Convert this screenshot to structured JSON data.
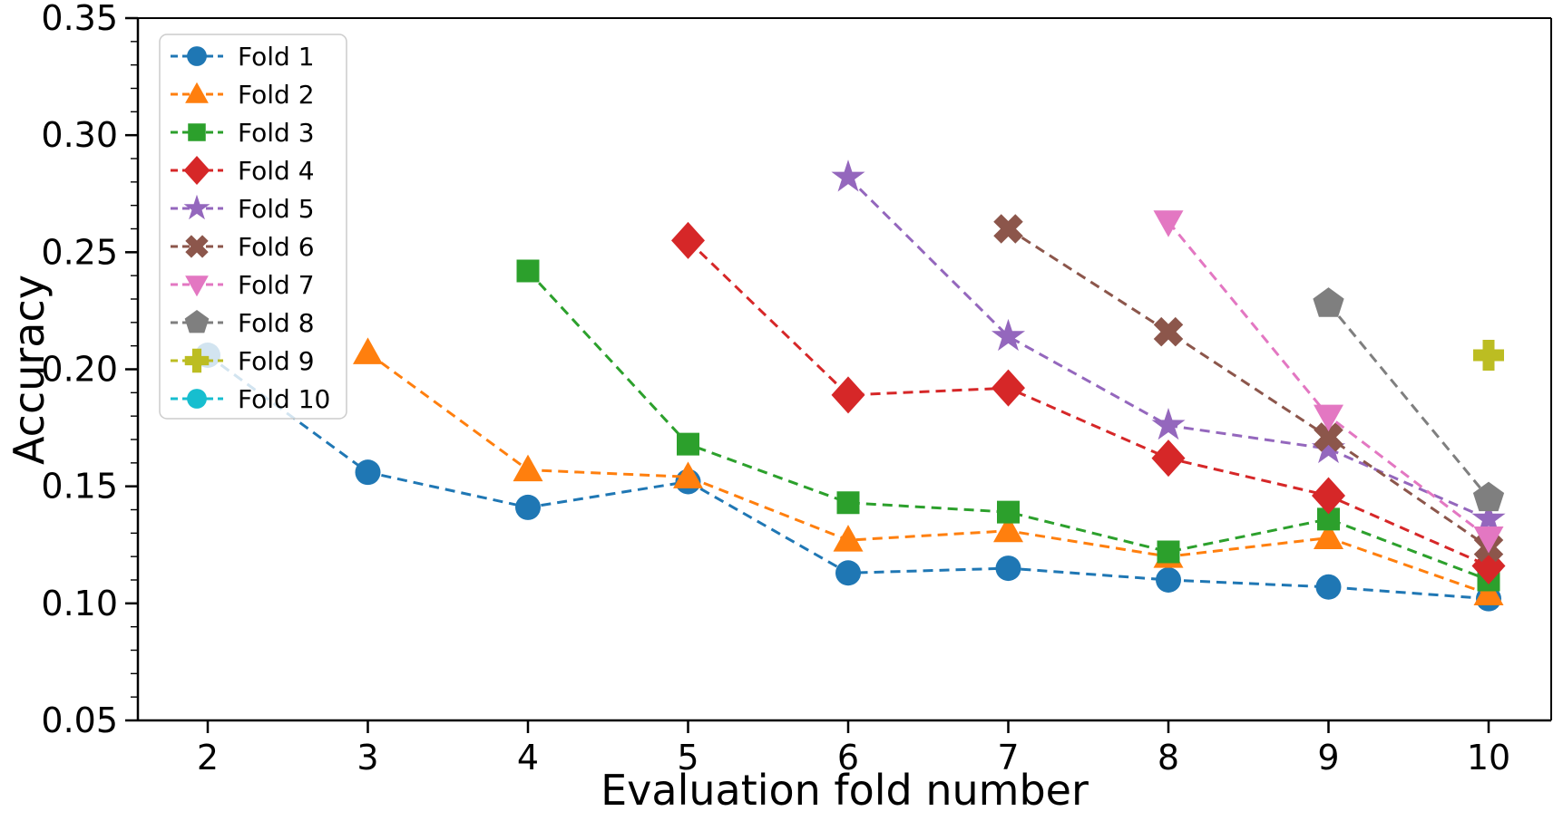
{
  "chart_data": {
    "type": "line",
    "title": "",
    "xlabel": "Evaluation fold number",
    "ylabel": "Accuracy",
    "x_ticks": [
      "2",
      "3",
      "4",
      "5",
      "6",
      "7",
      "8",
      "9",
      "10"
    ],
    "x_tick_values": [
      2,
      3,
      4,
      5,
      6,
      7,
      8,
      9,
      10
    ],
    "y_ticks": [
      "0.05",
      "0.10",
      "0.15",
      "0.20",
      "0.25",
      "0.30",
      "0.35"
    ],
    "y_tick_values": [
      0.05,
      0.1,
      0.15,
      0.2,
      0.25,
      0.3,
      0.35
    ],
    "y_minor_step": 0.01,
    "xlim": [
      1.56,
      10.39
    ],
    "ylim": [
      0.05,
      0.35
    ],
    "grid": false,
    "line_style": "dashed",
    "legend_position": "upper-left",
    "legend_opacity": 0.8,
    "series": [
      {
        "name": "Fold 1",
        "color": "#1f77b4",
        "marker": "circle",
        "points": [
          [
            2,
            0.206
          ],
          [
            3,
            0.156
          ],
          [
            4,
            0.141
          ],
          [
            5,
            0.152
          ],
          [
            6,
            0.113
          ],
          [
            7,
            0.115
          ],
          [
            8,
            0.11
          ],
          [
            9,
            0.107
          ],
          [
            10,
            0.102
          ]
        ]
      },
      {
        "name": "Fold 2",
        "color": "#ff7f0e",
        "marker": "triangle-up",
        "points": [
          [
            3,
            0.207
          ],
          [
            4,
            0.157
          ],
          [
            5,
            0.154
          ],
          [
            6,
            0.127
          ],
          [
            7,
            0.131
          ],
          [
            8,
            0.12
          ],
          [
            9,
            0.128
          ],
          [
            10,
            0.104
          ]
        ]
      },
      {
        "name": "Fold 3",
        "color": "#2ca02c",
        "marker": "square",
        "points": [
          [
            4,
            0.242
          ],
          [
            5,
            0.168
          ],
          [
            6,
            0.143
          ],
          [
            7,
            0.139
          ],
          [
            8,
            0.122
          ],
          [
            9,
            0.136
          ],
          [
            10,
            0.11
          ]
        ]
      },
      {
        "name": "Fold 4",
        "color": "#d62728",
        "marker": "diamond",
        "points": [
          [
            5,
            0.255
          ],
          [
            6,
            0.189
          ],
          [
            7,
            0.192
          ],
          [
            8,
            0.162
          ],
          [
            9,
            0.146
          ],
          [
            10,
            0.116
          ]
        ]
      },
      {
        "name": "Fold 5",
        "color": "#9467bd",
        "marker": "star",
        "points": [
          [
            6,
            0.282
          ],
          [
            7,
            0.214
          ],
          [
            8,
            0.176
          ],
          [
            9,
            0.166
          ],
          [
            10,
            0.136
          ]
        ]
      },
      {
        "name": "Fold 6",
        "color": "#8c564b",
        "marker": "x-thick",
        "points": [
          [
            7,
            0.26
          ],
          [
            8,
            0.216
          ],
          [
            9,
            0.171
          ],
          [
            10,
            0.124
          ]
        ]
      },
      {
        "name": "Fold 7",
        "color": "#e377c2",
        "marker": "triangle-down",
        "points": [
          [
            8,
            0.263
          ],
          [
            9,
            0.18
          ],
          [
            10,
            0.128
          ]
        ]
      },
      {
        "name": "Fold 8",
        "color": "#7f7f7f",
        "marker": "pentagon",
        "points": [
          [
            9,
            0.228
          ],
          [
            10,
            0.145
          ]
        ]
      },
      {
        "name": "Fold 9",
        "color": "#bcbd22",
        "marker": "plus-thick",
        "points": [
          [
            10,
            0.206
          ]
        ]
      },
      {
        "name": "Fold 10",
        "color": "#17becf",
        "marker": "circle",
        "points": []
      }
    ]
  }
}
